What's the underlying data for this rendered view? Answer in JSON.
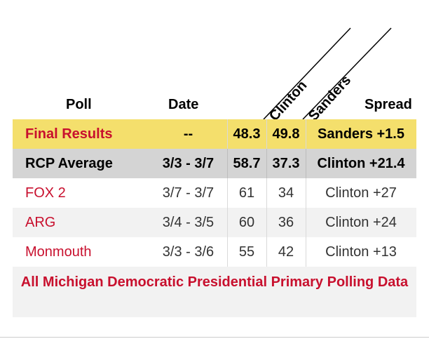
{
  "table": {
    "headers": {
      "poll": "Poll",
      "date": "Date",
      "clinton": "Clinton",
      "sanders": "Sanders",
      "spread": "Spread"
    },
    "rows": [
      {
        "poll": "Final Results",
        "date": "--",
        "clinton": "48.3",
        "sanders": "49.8",
        "spread": "Sanders +1.5"
      },
      {
        "poll": "RCP Average",
        "date": "3/3 - 3/7",
        "clinton": "58.7",
        "sanders": "37.3",
        "spread": "Clinton +21.4"
      },
      {
        "poll": "FOX 2",
        "date": "3/7 - 3/7",
        "clinton": "61",
        "sanders": "34",
        "spread": "Clinton +27"
      },
      {
        "poll": "ARG",
        "date": "3/4 - 3/5",
        "clinton": "60",
        "sanders": "36",
        "spread": "Clinton +24"
      },
      {
        "poll": "Monmouth",
        "date": "3/3 - 3/6",
        "clinton": "55",
        "sanders": "42",
        "spread": "Clinton +13"
      }
    ],
    "footer_link": "All Michigan Democratic Presidential Primary Polling Data"
  },
  "colors": {
    "final_row_bg": "#f4df6c",
    "average_row_bg": "#d4d4d4",
    "accent_red": "#c8102e"
  }
}
